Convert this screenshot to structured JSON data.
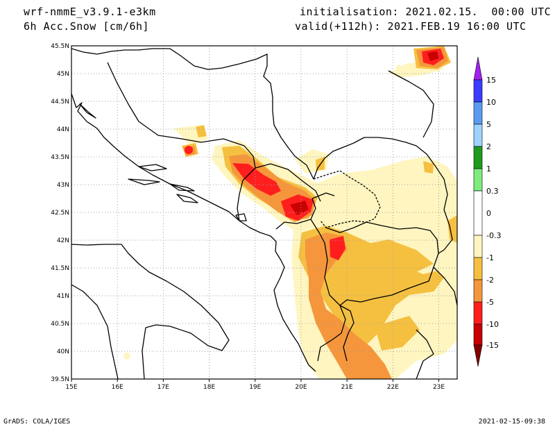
{
  "header": {
    "model": "wrf-nmmE_v3.9.1-e3km",
    "variable": "6h Acc.Snow [cm/6h]",
    "init_label": "initialisation:",
    "init_value": "2021.02.15.  00:00 UTC",
    "valid_label": "valid(+112h):",
    "valid_value": "2021.FEB.19 16:00 UTC"
  },
  "map": {
    "lon_ticks": [
      "15E",
      "16E",
      "17E",
      "18E",
      "19E",
      "20E",
      "21E",
      "22E",
      "23E"
    ],
    "lat_ticks": [
      "45.5N",
      "45N",
      "44.5N",
      "44N",
      "43.5N",
      "43N",
      "42.5N",
      "42N",
      "41.5N",
      "41N",
      "40.5N",
      "40N",
      "39.5N"
    ],
    "grid": true
  },
  "legend": {
    "labels": [
      "15",
      "10",
      "5",
      "2",
      "1",
      "0.3",
      "0",
      "-0.3",
      "-1",
      "-2",
      "-5",
      "-10",
      "-15"
    ],
    "colors": {
      "gt15": "#a020f0",
      "10_15": "#3c3cff",
      "5_10": "#5a9bf0",
      "2_5": "#a0d2ff",
      "1_2": "#1e9b1e",
      "0.3_1": "#7deb7d",
      "neutral": "#ffffff",
      "m0.3_m1": "#fff5c0",
      "m1_m2": "#f5c040",
      "m2_m5": "#f5963c",
      "m5_m10": "#ff1e1e",
      "m10_m15": "#c80000",
      "lt_m15": "#820000"
    }
  },
  "footer": {
    "credit": "GrADS: COLA/IGES",
    "timestamp": "2021-02-15-09:38"
  }
}
